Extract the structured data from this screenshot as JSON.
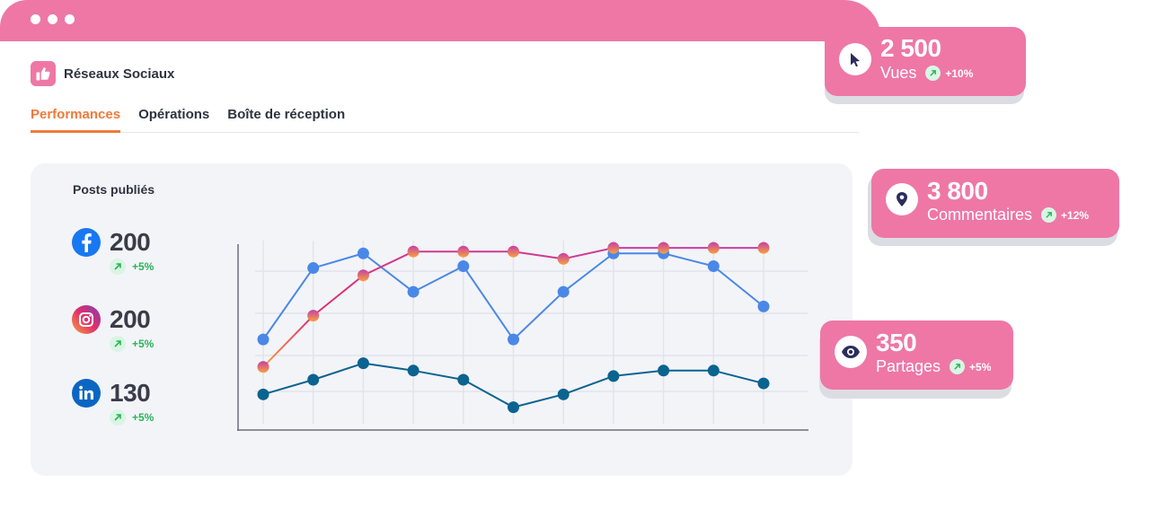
{
  "app": {
    "title": "Réseaux Sociaux",
    "logo_icon": "thumbs-up-icon"
  },
  "tabs": [
    {
      "label": "Performances",
      "active": true
    },
    {
      "label": "Opérations",
      "active": false
    },
    {
      "label": "Boîte de réception",
      "active": false
    }
  ],
  "panel": {
    "title": "Posts publiés",
    "stats": [
      {
        "network": "facebook",
        "icon": "facebook-icon",
        "value": "200",
        "trend": "+5%"
      },
      {
        "network": "instagram",
        "icon": "instagram-icon",
        "value": "200",
        "trend": "+5%"
      },
      {
        "network": "linkedin",
        "icon": "linkedin-icon",
        "value": "130",
        "trend": "+5%"
      }
    ]
  },
  "cards": [
    {
      "icon": "cursor-icon",
      "value": "2 500",
      "label": "Vues",
      "trend": "+10%"
    },
    {
      "icon": "map-pin-icon",
      "value": "3 800",
      "label": "Commentaires",
      "trend": "+12%"
    },
    {
      "icon": "eye-icon",
      "value": "350",
      "label": "Partages",
      "trend": "+5%"
    }
  ],
  "colors": {
    "brand_pink": "#ee77a6",
    "tab_active": "#ef7a3b",
    "facebook_line": "#4a88e8",
    "instagram_line": "#c63fa8",
    "linkedin_line": "#0b6390",
    "trend_up": "#2bb35a"
  },
  "chart_data": {
    "type": "line",
    "x": [
      1,
      2,
      3,
      4,
      5,
      6,
      7,
      8,
      9,
      10,
      11
    ],
    "ylim": [
      0,
      100
    ],
    "grid": true,
    "series": [
      {
        "key": "facebook",
        "color": "#4a88e8",
        "values": [
          47,
          86,
          94,
          73,
          87,
          47,
          73,
          94,
          94,
          87,
          65
        ]
      },
      {
        "key": "instagram",
        "color": "#c63fa8",
        "values": [
          32,
          60,
          82,
          95,
          95,
          95,
          91,
          97,
          97,
          97,
          97
        ]
      },
      {
        "key": "linkedin",
        "color": "#0b6390",
        "values": [
          17,
          25,
          34,
          30,
          25,
          10,
          17,
          27,
          30,
          30,
          23
        ]
      }
    ]
  }
}
